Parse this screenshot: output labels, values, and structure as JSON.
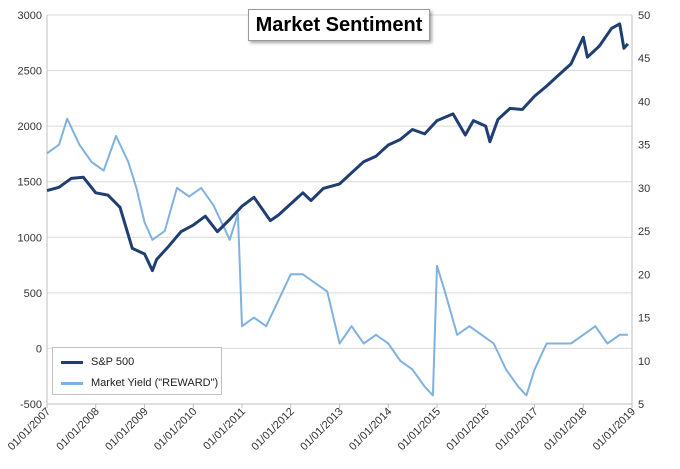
{
  "chart_data": {
    "type": "line",
    "title": "Market Sentiment",
    "x_tick_labels": [
      "01/01/2007",
      "01/01/2008",
      "01/01/2009",
      "01/01/2010",
      "01/01/2011",
      "01/01/2012",
      "01/01/2013",
      "01/01/2014",
      "01/01/2015",
      "01/01/2016",
      "01/01/2017",
      "01/01/2018",
      "01/01/2019"
    ],
    "y_left": {
      "ticks": [
        -500,
        0,
        500,
        1000,
        1500,
        2000,
        2500,
        3000
      ],
      "lim": [
        -500,
        3000
      ]
    },
    "y_right": {
      "ticks": [
        5,
        10,
        15,
        20,
        25,
        30,
        35,
        40,
        45,
        50
      ],
      "lim": [
        5,
        50
      ]
    },
    "grid": "horizontal",
    "legend_position": "bottom-left",
    "series": [
      {
        "name": "S&P 500",
        "axis": "left",
        "color": "#1f3f72",
        "points": [
          [
            "2007-01-01",
            1420
          ],
          [
            "2007-04-01",
            1450
          ],
          [
            "2007-07-01",
            1530
          ],
          [
            "2007-10-01",
            1540
          ],
          [
            "2008-01-01",
            1400
          ],
          [
            "2008-04-01",
            1380
          ],
          [
            "2008-07-01",
            1270
          ],
          [
            "2008-10-01",
            900
          ],
          [
            "2009-01-01",
            850
          ],
          [
            "2009-03-01",
            700
          ],
          [
            "2009-04-01",
            800
          ],
          [
            "2009-07-01",
            920
          ],
          [
            "2009-10-01",
            1050
          ],
          [
            "2010-01-01",
            1110
          ],
          [
            "2010-04-01",
            1190
          ],
          [
            "2010-07-01",
            1050
          ],
          [
            "2010-10-01",
            1160
          ],
          [
            "2011-01-01",
            1280
          ],
          [
            "2011-04-01",
            1360
          ],
          [
            "2011-08-01",
            1150
          ],
          [
            "2011-10-01",
            1200
          ],
          [
            "2012-01-01",
            1300
          ],
          [
            "2012-04-01",
            1400
          ],
          [
            "2012-06-01",
            1330
          ],
          [
            "2012-09-01",
            1440
          ],
          [
            "2013-01-01",
            1480
          ],
          [
            "2013-04-01",
            1580
          ],
          [
            "2013-07-01",
            1680
          ],
          [
            "2013-10-01",
            1730
          ],
          [
            "2014-01-01",
            1830
          ],
          [
            "2014-04-01",
            1880
          ],
          [
            "2014-07-01",
            1970
          ],
          [
            "2014-10-01",
            1930
          ],
          [
            "2015-01-01",
            2050
          ],
          [
            "2015-05-01",
            2110
          ],
          [
            "2015-08-01",
            1920
          ],
          [
            "2015-10-01",
            2050
          ],
          [
            "2016-01-01",
            2000
          ],
          [
            "2016-02-01",
            1860
          ],
          [
            "2016-04-01",
            2060
          ],
          [
            "2016-07-01",
            2160
          ],
          [
            "2016-10-01",
            2150
          ],
          [
            "2017-01-01",
            2270
          ],
          [
            "2017-04-01",
            2360
          ],
          [
            "2017-07-01",
            2460
          ],
          [
            "2017-10-01",
            2560
          ],
          [
            "2018-01-01",
            2800
          ],
          [
            "2018-02-01",
            2620
          ],
          [
            "2018-05-01",
            2720
          ],
          [
            "2018-08-01",
            2880
          ],
          [
            "2018-10-01",
            2920
          ],
          [
            "2018-11-01",
            2700
          ],
          [
            "2018-12-01",
            2740
          ]
        ]
      },
      {
        "name": "Market Yield (\"REWARD\")",
        "axis": "right",
        "color": "#7fb2e0",
        "points": [
          [
            "2007-01-01",
            34
          ],
          [
            "2007-04-01",
            35
          ],
          [
            "2007-06-01",
            38
          ],
          [
            "2007-09-01",
            35
          ],
          [
            "2007-12-01",
            33
          ],
          [
            "2008-03-01",
            32
          ],
          [
            "2008-06-01",
            36
          ],
          [
            "2008-09-01",
            33
          ],
          [
            "2008-11-01",
            30
          ],
          [
            "2009-01-01",
            26
          ],
          [
            "2009-03-01",
            24
          ],
          [
            "2009-06-01",
            25
          ],
          [
            "2009-09-01",
            30
          ],
          [
            "2009-12-01",
            29
          ],
          [
            "2010-03-01",
            30
          ],
          [
            "2010-06-01",
            28
          ],
          [
            "2010-09-01",
            25
          ],
          [
            "2010-10-01",
            24
          ],
          [
            "2010-12-01",
            27
          ],
          [
            "2011-01-01",
            14
          ],
          [
            "2011-04-01",
            15
          ],
          [
            "2011-07-01",
            14
          ],
          [
            "2011-10-01",
            17
          ],
          [
            "2012-01-01",
            20
          ],
          [
            "2012-04-01",
            20
          ],
          [
            "2012-07-01",
            19
          ],
          [
            "2012-10-01",
            18
          ],
          [
            "2013-01-01",
            12
          ],
          [
            "2013-04-01",
            14
          ],
          [
            "2013-07-01",
            12
          ],
          [
            "2013-10-01",
            13
          ],
          [
            "2014-01-01",
            12
          ],
          [
            "2014-04-01",
            10
          ],
          [
            "2014-07-01",
            9
          ],
          [
            "2014-10-01",
            7
          ],
          [
            "2014-12-01",
            6
          ],
          [
            "2015-01-01",
            21
          ],
          [
            "2015-03-01",
            18
          ],
          [
            "2015-06-01",
            13
          ],
          [
            "2015-09-01",
            14
          ],
          [
            "2015-12-01",
            13
          ],
          [
            "2016-03-01",
            12
          ],
          [
            "2016-06-01",
            9
          ],
          [
            "2016-09-01",
            7
          ],
          [
            "2016-11-01",
            6
          ],
          [
            "2017-01-01",
            9
          ],
          [
            "2017-04-01",
            12
          ],
          [
            "2017-07-01",
            12
          ],
          [
            "2017-10-01",
            12
          ],
          [
            "2018-01-01",
            13
          ],
          [
            "2018-04-01",
            14
          ],
          [
            "2018-07-01",
            12
          ],
          [
            "2018-10-01",
            13
          ],
          [
            "2018-12-01",
            13
          ]
        ]
      }
    ]
  }
}
